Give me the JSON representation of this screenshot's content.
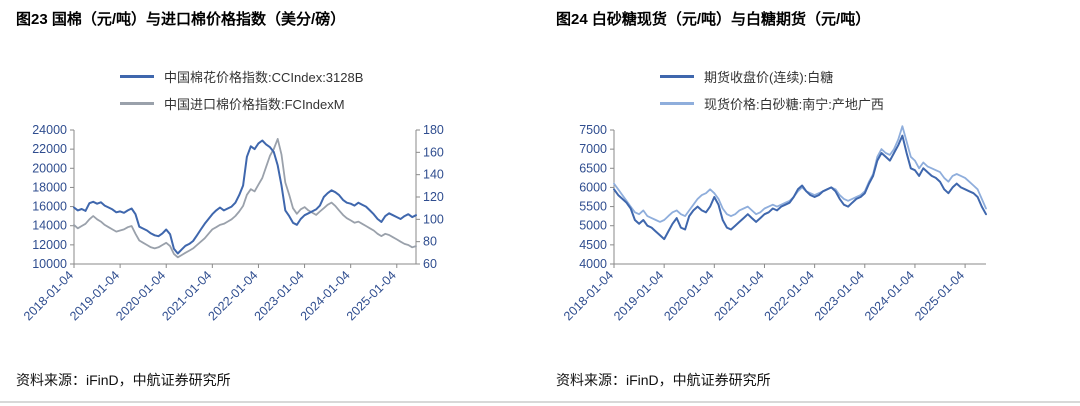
{
  "theme": {
    "axis_text": "#2F4D8F",
    "axis_line": "#8a8a8a",
    "dark_blue": "#3F67AD",
    "gray": "#9AA1AB",
    "light_blue": "#8FAEDC"
  },
  "chart_data": [
    {
      "type": "line",
      "title": "图23 国棉（元/吨）与进口棉价格指数（美分/磅）",
      "source": "资料来源：iFinD，中航证券研究所",
      "x_tick_labels": [
        "2018-01-04",
        "2019-01-04",
        "2020-01-04",
        "2021-01-04",
        "2022-01-04",
        "2023-01-04",
        "2024-01-04",
        "2025-01-04"
      ],
      "x_tick_positions": [
        0,
        12,
        24,
        36,
        48,
        60,
        72,
        84
      ],
      "x_range": [
        0,
        89
      ],
      "left_axis": {
        "ylim": [
          10000,
          24000
        ],
        "ticks": [
          10000,
          12000,
          14000,
          16000,
          18000,
          20000,
          22000,
          24000
        ]
      },
      "right_axis": {
        "ylim": [
          60,
          180
        ],
        "ticks": [
          60,
          80,
          100,
          120,
          140,
          160,
          180
        ]
      },
      "legend_position": "top",
      "grid": false,
      "series": [
        {
          "name": "中国棉花价格指数:CCIndex:3128B",
          "color": "#3F67AD",
          "width": 2,
          "axis": "left",
          "values": [
            15900,
            15600,
            15750,
            15550,
            16350,
            16500,
            16300,
            16450,
            16100,
            15900,
            15700,
            15400,
            15500,
            15350,
            15600,
            15800,
            15200,
            13900,
            13700,
            13500,
            13200,
            13000,
            12900,
            13200,
            13600,
            13100,
            11600,
            11100,
            11500,
            11900,
            12100,
            12400,
            13000,
            13600,
            14200,
            14700,
            15200,
            15600,
            15900,
            15600,
            15800,
            16000,
            16400,
            17200,
            18200,
            21200,
            22300,
            22000,
            22600,
            22900,
            22500,
            22200,
            21700,
            20300,
            18200,
            15600,
            15000,
            14300,
            14100,
            14700,
            15100,
            15300,
            15500,
            15700,
            16100,
            17000,
            17400,
            17700,
            17500,
            17200,
            16700,
            16400,
            16300,
            16100,
            16400,
            16200,
            16000,
            15600,
            15200,
            14700,
            14400,
            15000,
            15300,
            15100,
            14900,
            14700,
            15000,
            15200,
            14900,
            15100
          ]
        },
        {
          "name": "中国进口棉价格指数:FCIndexM",
          "color": "#9AA1AB",
          "width": 1.8,
          "axis": "right",
          "values": [
            95,
            92,
            94,
            96,
            100,
            103,
            100,
            98,
            95,
            93,
            91,
            89,
            90,
            91,
            93,
            94,
            87,
            81,
            79,
            77,
            75,
            74,
            75,
            77,
            79,
            76,
            69,
            66,
            68,
            70,
            72,
            74,
            77,
            80,
            83,
            87,
            91,
            93,
            95,
            96,
            98,
            100,
            103,
            107,
            112,
            122,
            127,
            125,
            131,
            137,
            147,
            157,
            163,
            172,
            158,
            133,
            122,
            110,
            105,
            109,
            111,
            108,
            106,
            104,
            107,
            110,
            113,
            115,
            112,
            108,
            104,
            101,
            99,
            97,
            98,
            96,
            94,
            92,
            90,
            87,
            85,
            87,
            86,
            84,
            82,
            80,
            78,
            77,
            75,
            76
          ]
        }
      ]
    },
    {
      "type": "line",
      "title": "图24 白砂糖现货（元/吨）与白糖期货（元/吨）",
      "source": "资料来源：iFinD，中航证券研究所",
      "x_tick_labels": [
        "2018-01-04",
        "2019-01-04",
        "2020-01-04",
        "2021-01-04",
        "2022-01-04",
        "2023-01-04",
        "2024-01-04",
        "2025-01-04"
      ],
      "x_tick_positions": [
        0,
        12,
        24,
        36,
        48,
        60,
        72,
        84
      ],
      "x_range": [
        0,
        89
      ],
      "left_axis": {
        "ylim": [
          4000,
          7500
        ],
        "ticks": [
          4000,
          4500,
          5000,
          5500,
          6000,
          6500,
          7000,
          7500
        ]
      },
      "legend_position": "top",
      "grid": false,
      "series": [
        {
          "name": "期货收盘价(连续):白糖",
          "color": "#3F67AD",
          "width": 2,
          "axis": "left",
          "values": [
            5950,
            5800,
            5700,
            5600,
            5450,
            5150,
            5050,
            5150,
            5000,
            4950,
            4850,
            4750,
            4650,
            4850,
            5050,
            5200,
            4950,
            4900,
            5250,
            5400,
            5500,
            5400,
            5350,
            5500,
            5750,
            5550,
            5150,
            4950,
            4900,
            5000,
            5100,
            5200,
            5300,
            5200,
            5100,
            5200,
            5300,
            5350,
            5450,
            5400,
            5500,
            5550,
            5600,
            5750,
            5950,
            6050,
            5900,
            5800,
            5750,
            5800,
            5900,
            5950,
            6000,
            5900,
            5700,
            5550,
            5500,
            5600,
            5700,
            5750,
            5850,
            6100,
            6300,
            6700,
            6900,
            6800,
            6700,
            6900,
            7100,
            7350,
            6900,
            6500,
            6450,
            6300,
            6500,
            6400,
            6300,
            6250,
            6150,
            5950,
            5850,
            6000,
            6100,
            6000,
            5950,
            5900,
            5850,
            5750,
            5500,
            5300
          ]
        },
        {
          "name": "现货价格:白砂糖:南宁:产地广西",
          "color": "#8FAEDC",
          "width": 1.8,
          "axis": "left",
          "values": [
            6100,
            5950,
            5800,
            5650,
            5500,
            5350,
            5300,
            5400,
            5250,
            5200,
            5150,
            5100,
            5150,
            5250,
            5350,
            5400,
            5300,
            5250,
            5400,
            5550,
            5700,
            5800,
            5850,
            5950,
            5850,
            5700,
            5450,
            5300,
            5250,
            5300,
            5400,
            5450,
            5500,
            5400,
            5300,
            5350,
            5450,
            5500,
            5550,
            5500,
            5550,
            5600,
            5650,
            5750,
            5900,
            6000,
            5900,
            5850,
            5800,
            5850,
            5900,
            5950,
            6000,
            5950,
            5800,
            5700,
            5650,
            5700,
            5750,
            5800,
            5900,
            6150,
            6350,
            6800,
            7000,
            6900,
            6850,
            7000,
            7250,
            7600,
            7200,
            6800,
            6700,
            6500,
            6650,
            6550,
            6500,
            6450,
            6400,
            6250,
            6150,
            6300,
            6350,
            6300,
            6250,
            6150,
            6050,
            5950,
            5700,
            5450
          ]
        }
      ]
    }
  ]
}
